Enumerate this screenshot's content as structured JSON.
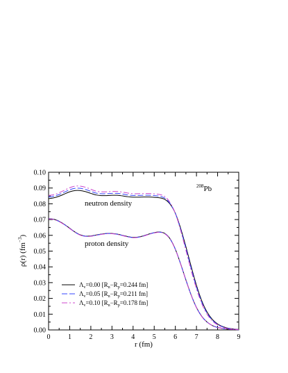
{
  "chart_data": {
    "type": "line",
    "xlabel_main": "r (fm)",
    "ylabel_rho": "ρ(r) (fm",
    "ylabel_exp": "−3",
    "ylabel_close": ")",
    "xlim": [
      0,
      9
    ],
    "ylim": [
      0,
      0.1
    ],
    "x_ticks": [
      "0",
      "1",
      "2",
      "3",
      "4",
      "5",
      "6",
      "7",
      "8",
      "9"
    ],
    "y_ticks": [
      "0.00",
      "0.01",
      "0.02",
      "0.03",
      "0.04",
      "0.05",
      "0.06",
      "0.07",
      "0.08",
      "0.09",
      "0.10"
    ],
    "grid": false,
    "annotations": {
      "neutron": "neutron density",
      "proton": "proton density",
      "nucleus_mass": "208",
      "nucleus_symbol": "Pb"
    },
    "legend_position": "bottom-left",
    "series": [
      {
        "name": "Λv=0.00 [Rn−Rp=0.244 fm]",
        "label_main": "Λ",
        "label_sub": "v",
        "label_value": "=0.00 [R",
        "label_rn_sub": "n",
        "label_minus": "−R",
        "label_rp_sub": "p",
        "label_tail": "=0.244 fm]",
        "color": "#000000",
        "dash": "",
        "neutron": {
          "x": [
            0,
            0.25,
            0.5,
            0.75,
            1,
            1.25,
            1.5,
            1.75,
            2,
            2.25,
            2.5,
            2.75,
            3,
            3.25,
            3.5,
            3.75,
            4,
            4.25,
            4.5,
            4.75,
            5,
            5.25,
            5.5,
            5.75,
            6,
            6.25,
            6.5,
            6.75,
            7,
            7.25,
            7.5,
            7.75,
            8,
            8.25,
            8.5,
            8.75,
            9
          ],
          "y": [
            0.0833,
            0.0838,
            0.0848,
            0.0862,
            0.0876,
            0.0884,
            0.0884,
            0.0877,
            0.0866,
            0.0856,
            0.0852,
            0.0852,
            0.0854,
            0.0854,
            0.085,
            0.0845,
            0.0842,
            0.0842,
            0.0843,
            0.0843,
            0.0841,
            0.0838,
            0.0828,
            0.0798,
            0.074,
            0.0645,
            0.0528,
            0.0402,
            0.0283,
            0.0185,
            0.0114,
            0.0067,
            0.0038,
            0.0021,
            0.0011,
            0.0006,
            0.0003
          ]
        },
        "proton": {
          "x": [
            0,
            0.25,
            0.5,
            0.75,
            1,
            1.25,
            1.5,
            1.75,
            2,
            2.25,
            2.5,
            2.75,
            3,
            3.25,
            3.5,
            3.75,
            4,
            4.25,
            4.5,
            4.75,
            5,
            5.25,
            5.5,
            5.75,
            6,
            6.25,
            6.5,
            6.75,
            7,
            7.25,
            7.5,
            7.75,
            8,
            8.25,
            8.5,
            8.75,
            9
          ],
          "y": [
            0.0706,
            0.0702,
            0.0689,
            0.0669,
            0.0645,
            0.0621,
            0.0603,
            0.0595,
            0.0596,
            0.0602,
            0.0608,
            0.0612,
            0.0612,
            0.0608,
            0.06,
            0.0592,
            0.0587,
            0.0589,
            0.0597,
            0.0608,
            0.0617,
            0.0621,
            0.0612,
            0.0578,
            0.0512,
            0.0419,
            0.0317,
            0.0221,
            0.0142,
            0.0086,
            0.005,
            0.0028,
            0.0016,
            0.0009,
            0.0005,
            0.0003,
            0.0001
          ]
        }
      },
      {
        "name": "Λv=0.05 [Rn−Rp=0.211 fm]",
        "label_main": "Λ",
        "label_sub": "v",
        "label_value": "=0.05 [R",
        "label_rn_sub": "n",
        "label_minus": "−R",
        "label_rp_sub": "p",
        "label_tail": "=0.211 fm]",
        "color": "#3344ff",
        "dash": "8,3",
        "neutron": {
          "x": [
            0,
            0.25,
            0.5,
            0.75,
            1,
            1.25,
            1.5,
            1.75,
            2,
            2.25,
            2.5,
            2.75,
            3,
            3.25,
            3.5,
            3.75,
            4,
            4.25,
            4.5,
            4.75,
            5,
            5.25,
            5.5,
            5.75,
            6,
            6.25,
            6.5,
            6.75,
            7,
            7.25,
            7.5,
            7.75,
            8,
            8.25,
            8.5,
            8.75,
            9
          ],
          "y": [
            0.0843,
            0.0848,
            0.0859,
            0.0874,
            0.0889,
            0.0898,
            0.0898,
            0.0891,
            0.0879,
            0.0868,
            0.0864,
            0.0864,
            0.0866,
            0.0866,
            0.0862,
            0.0856,
            0.0853,
            0.0853,
            0.0854,
            0.0854,
            0.0852,
            0.0848,
            0.0836,
            0.0802,
            0.0739,
            0.0638,
            0.0517,
            0.039,
            0.0272,
            0.0176,
            0.0107,
            0.0062,
            0.0035,
            0.0019,
            0.001,
            0.0005,
            0.0002
          ]
        },
        "proton": {
          "x": [
            0,
            0.25,
            0.5,
            0.75,
            1,
            1.25,
            1.5,
            1.75,
            2,
            2.25,
            2.5,
            2.75,
            3,
            3.25,
            3.5,
            3.75,
            4,
            4.25,
            4.5,
            4.75,
            5,
            5.25,
            5.5,
            5.75,
            6,
            6.25,
            6.5,
            6.75,
            7,
            7.25,
            7.5,
            7.75,
            8,
            8.25,
            8.5,
            8.75,
            9
          ],
          "y": [
            0.0705,
            0.0701,
            0.0688,
            0.0668,
            0.0644,
            0.062,
            0.0602,
            0.0594,
            0.0595,
            0.0601,
            0.0607,
            0.0611,
            0.0611,
            0.0607,
            0.0599,
            0.0591,
            0.0586,
            0.0588,
            0.0596,
            0.0607,
            0.0616,
            0.062,
            0.0611,
            0.0577,
            0.0511,
            0.0418,
            0.0316,
            0.022,
            0.0142,
            0.0086,
            0.005,
            0.0028,
            0.0016,
            0.0009,
            0.0005,
            0.0003,
            0.0001
          ]
        }
      },
      {
        "name": "Λv=0.10 [Rn−Rp=0.178 fm]",
        "label_main": "Λ",
        "label_sub": "v",
        "label_value": "=0.10 [R",
        "label_rn_sub": "n",
        "label_minus": "−R",
        "label_rp_sub": "p",
        "label_tail": "=0.178 fm]",
        "color": "#cc44cc",
        "dash": "8,3,2,3",
        "neutron": {
          "x": [
            0,
            0.25,
            0.5,
            0.75,
            1,
            1.25,
            1.5,
            1.75,
            2,
            2.25,
            2.5,
            2.75,
            3,
            3.25,
            3.5,
            3.75,
            4,
            4.25,
            4.5,
            4.75,
            5,
            5.25,
            5.5,
            5.75,
            6,
            6.25,
            6.5,
            6.75,
            7,
            7.25,
            7.5,
            7.75,
            8,
            8.25,
            8.5,
            8.75,
            9
          ],
          "y": [
            0.0853,
            0.0858,
            0.087,
            0.0886,
            0.0902,
            0.0912,
            0.0912,
            0.0905,
            0.0892,
            0.088,
            0.0876,
            0.0876,
            0.0878,
            0.0878,
            0.0874,
            0.0868,
            0.0864,
            0.0864,
            0.0865,
            0.0865,
            0.0863,
            0.0859,
            0.0846,
            0.0808,
            0.0739,
            0.0631,
            0.0505,
            0.0377,
            0.0261,
            0.0167,
            0.01,
            0.0057,
            0.0032,
            0.0017,
            0.0009,
            0.0005,
            0.0002
          ]
        },
        "proton": {
          "x": [
            0,
            0.25,
            0.5,
            0.75,
            1,
            1.25,
            1.5,
            1.75,
            2,
            2.25,
            2.5,
            2.75,
            3,
            3.25,
            3.5,
            3.75,
            4,
            4.25,
            4.5,
            4.75,
            5,
            5.25,
            5.5,
            5.75,
            6,
            6.25,
            6.5,
            6.75,
            7,
            7.25,
            7.5,
            7.75,
            8,
            8.25,
            8.5,
            8.75,
            9
          ],
          "y": [
            0.0704,
            0.07,
            0.0687,
            0.0667,
            0.0643,
            0.0619,
            0.0601,
            0.0593,
            0.0594,
            0.06,
            0.0606,
            0.061,
            0.061,
            0.0606,
            0.0598,
            0.059,
            0.0585,
            0.0587,
            0.0595,
            0.0606,
            0.0615,
            0.0619,
            0.061,
            0.0576,
            0.051,
            0.0417,
            0.0315,
            0.022,
            0.0141,
            0.0085,
            0.005,
            0.0028,
            0.0016,
            0.0009,
            0.0005,
            0.0003,
            0.0001
          ]
        }
      }
    ]
  }
}
